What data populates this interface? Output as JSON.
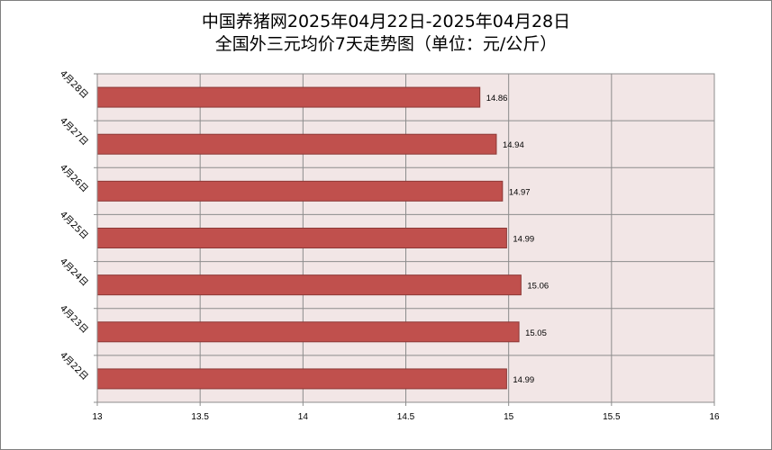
{
  "chart_data": {
    "type": "bar",
    "orientation": "horizontal",
    "title": "中国养猪网2025年04月22日-2025年04月28日",
    "subtitle": "全国外三元均价7天走势图（单位：元/公斤）",
    "categories": [
      "4月28日",
      "4月27日",
      "4月26日",
      "4月25日",
      "4月24日",
      "4月23日",
      "4月22日"
    ],
    "values": [
      14.86,
      14.94,
      14.97,
      14.99,
      15.06,
      15.05,
      14.99
    ],
    "data_labels": [
      "14.86",
      "14.94",
      "14.97",
      "14.99",
      "15.06",
      "15.05",
      "14.99"
    ],
    "xlim": [
      13,
      16
    ],
    "x_ticks": [
      "13",
      "13.5",
      "14",
      "14.5",
      "15",
      "15.5",
      "16"
    ],
    "xlabel": "",
    "ylabel": "",
    "grid": true,
    "legend": "none",
    "colors": {
      "bar_fill": "#c0504d",
      "bar_stroke": "#8c3836",
      "plot_bg": "#f2e6e6",
      "grid": "#8c8c8c"
    }
  }
}
